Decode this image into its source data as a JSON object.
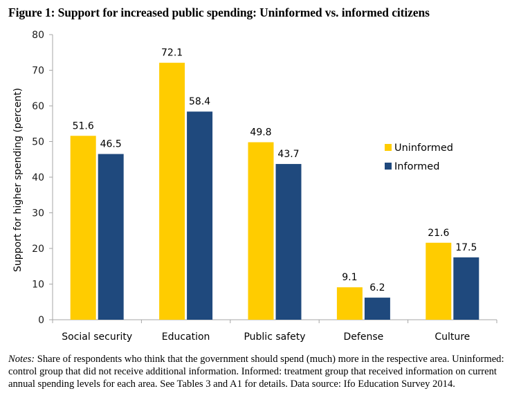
{
  "figure": {
    "title": "Figure 1: Support for increased public spending: Uninformed vs. informed citizens",
    "notes_label": "Notes:",
    "notes_text": " Share of respondents who think that the government should spend (much) more in the respective area. Uninformed: control group that did not receive additional information. Informed: treatment group that received information on current annual spending levels for each area. See Tables 3 and A1 for details. Data source: Ifo Education Survey 2014."
  },
  "chart_data": {
    "type": "bar",
    "title": "Figure 1: Support for increased public spending: Uninformed vs. informed citizens",
    "xlabel": "",
    "ylabel": "Support for higher spending (percent)",
    "categories": [
      "Social security",
      "Education",
      "Public safety",
      "Defense",
      "Culture"
    ],
    "series": [
      {
        "name": "Uninformed",
        "color": "#FFCC00",
        "values": [
          51.6,
          72.1,
          49.8,
          9.1,
          21.6
        ]
      },
      {
        "name": "Informed",
        "color": "#1F497D",
        "values": [
          46.5,
          58.4,
          43.7,
          6.2,
          17.5
        ]
      }
    ],
    "ylim": [
      0,
      80
    ],
    "yticks": [
      0,
      10,
      20,
      30,
      40,
      50,
      60,
      70,
      80
    ],
    "grid": false,
    "legend_position": "right",
    "data_labels": true
  }
}
